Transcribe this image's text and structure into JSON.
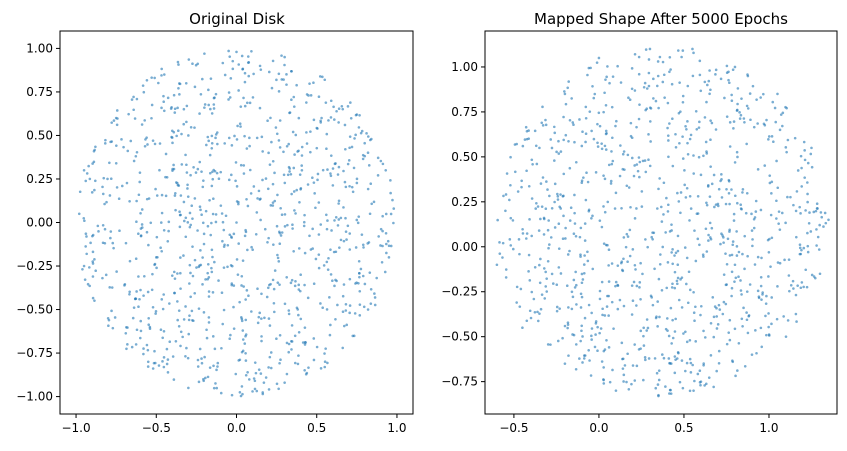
{
  "chart_data": [
    {
      "type": "scatter",
      "title": "Original Disk",
      "xlabel": "",
      "ylabel": "",
      "xlim": [
        -1.1,
        1.1
      ],
      "ylim": [
        -1.1,
        1.1
      ],
      "xticks": [
        -1.0,
        -0.5,
        0.0,
        0.5,
        1.0
      ],
      "xtick_labels": [
        "−1.0",
        "−0.5",
        "0.0",
        "0.5",
        "1.0"
      ],
      "yticks": [
        -1.0,
        -0.75,
        -0.5,
        -0.25,
        0.0,
        0.25,
        0.5,
        0.75,
        1.0
      ],
      "ytick_labels": [
        "−1.00",
        "−0.75",
        "−0.50",
        "−0.25",
        "0.00",
        "0.25",
        "0.50",
        "0.75",
        "1.00"
      ],
      "grid": false,
      "marker_color": "#1f77b4",
      "shape": {
        "kind": "disk",
        "center": [
          0.0,
          0.0
        ],
        "radius": 1.0,
        "n_points": 1000
      },
      "points": [
        [
          0.0,
          0.98
        ],
        [
          -0.2,
          0.97
        ],
        [
          0.3,
          0.95
        ],
        [
          -0.45,
          0.85
        ],
        [
          0.55,
          0.82
        ],
        [
          -0.75,
          0.6
        ],
        [
          0.75,
          0.62
        ],
        [
          -0.95,
          0.3
        ],
        [
          0.93,
          0.3
        ],
        [
          -0.98,
          0.05
        ],
        [
          0.98,
          0.08
        ],
        [
          -0.95,
          -0.25
        ],
        [
          0.95,
          -0.2
        ],
        [
          -0.8,
          -0.55
        ],
        [
          0.82,
          -0.5
        ],
        [
          -0.55,
          -0.8
        ],
        [
          0.55,
          -0.83
        ],
        [
          -0.3,
          -0.95
        ],
        [
          0.1,
          -0.97
        ],
        [
          0.3,
          -0.92
        ],
        [
          0.0,
          0.0
        ],
        [
          0.2,
          0.4
        ],
        [
          -0.3,
          0.5
        ],
        [
          0.4,
          -0.3
        ],
        [
          -0.5,
          -0.2
        ]
      ]
    },
    {
      "type": "scatter",
      "title": "Mapped Shape After 5000 Epochs",
      "xlabel": "",
      "ylabel": "",
      "xlim": [
        -0.67,
        1.4
      ],
      "ylim": [
        -0.93,
        1.2
      ],
      "xticks": [
        -0.5,
        0.0,
        0.5,
        1.0
      ],
      "xtick_labels": [
        "−0.5",
        "0.0",
        "0.5",
        "1.0"
      ],
      "yticks": [
        -0.75,
        -0.5,
        -0.25,
        0.0,
        0.25,
        0.5,
        0.75,
        1.0
      ],
      "ytick_labels": [
        "−0.75",
        "−0.50",
        "−0.25",
        "0.00",
        "0.25",
        "0.50",
        "0.75",
        "1.00"
      ],
      "grid": false,
      "marker_color": "#1f77b4",
      "shape": {
        "kind": "disk",
        "center": [
          0.37,
          0.14
        ],
        "radius": 0.97,
        "n_points": 1000
      },
      "points": [
        [
          0.55,
          1.1
        ],
        [
          0.3,
          1.1
        ],
        [
          0.0,
          1.05
        ],
        [
          -0.2,
          0.85
        ],
        [
          0.8,
          1.0
        ],
        [
          1.05,
          0.85
        ],
        [
          -0.35,
          0.55
        ],
        [
          1.25,
          0.55
        ],
        [
          -0.55,
          0.2
        ],
        [
          1.35,
          0.15
        ],
        [
          -0.6,
          -0.1
        ],
        [
          1.3,
          -0.15
        ],
        [
          -0.45,
          -0.45
        ],
        [
          1.1,
          -0.5
        ],
        [
          -0.2,
          -0.65
        ],
        [
          0.1,
          -0.8
        ],
        [
          0.35,
          -0.83
        ],
        [
          0.6,
          -0.75
        ],
        [
          0.9,
          -0.6
        ],
        [
          0.37,
          0.14
        ],
        [
          0.6,
          0.4
        ],
        [
          0.1,
          0.3
        ],
        [
          0.2,
          -0.3
        ],
        [
          0.8,
          -0.1
        ],
        [
          -0.1,
          -0.2
        ]
      ]
    }
  ]
}
